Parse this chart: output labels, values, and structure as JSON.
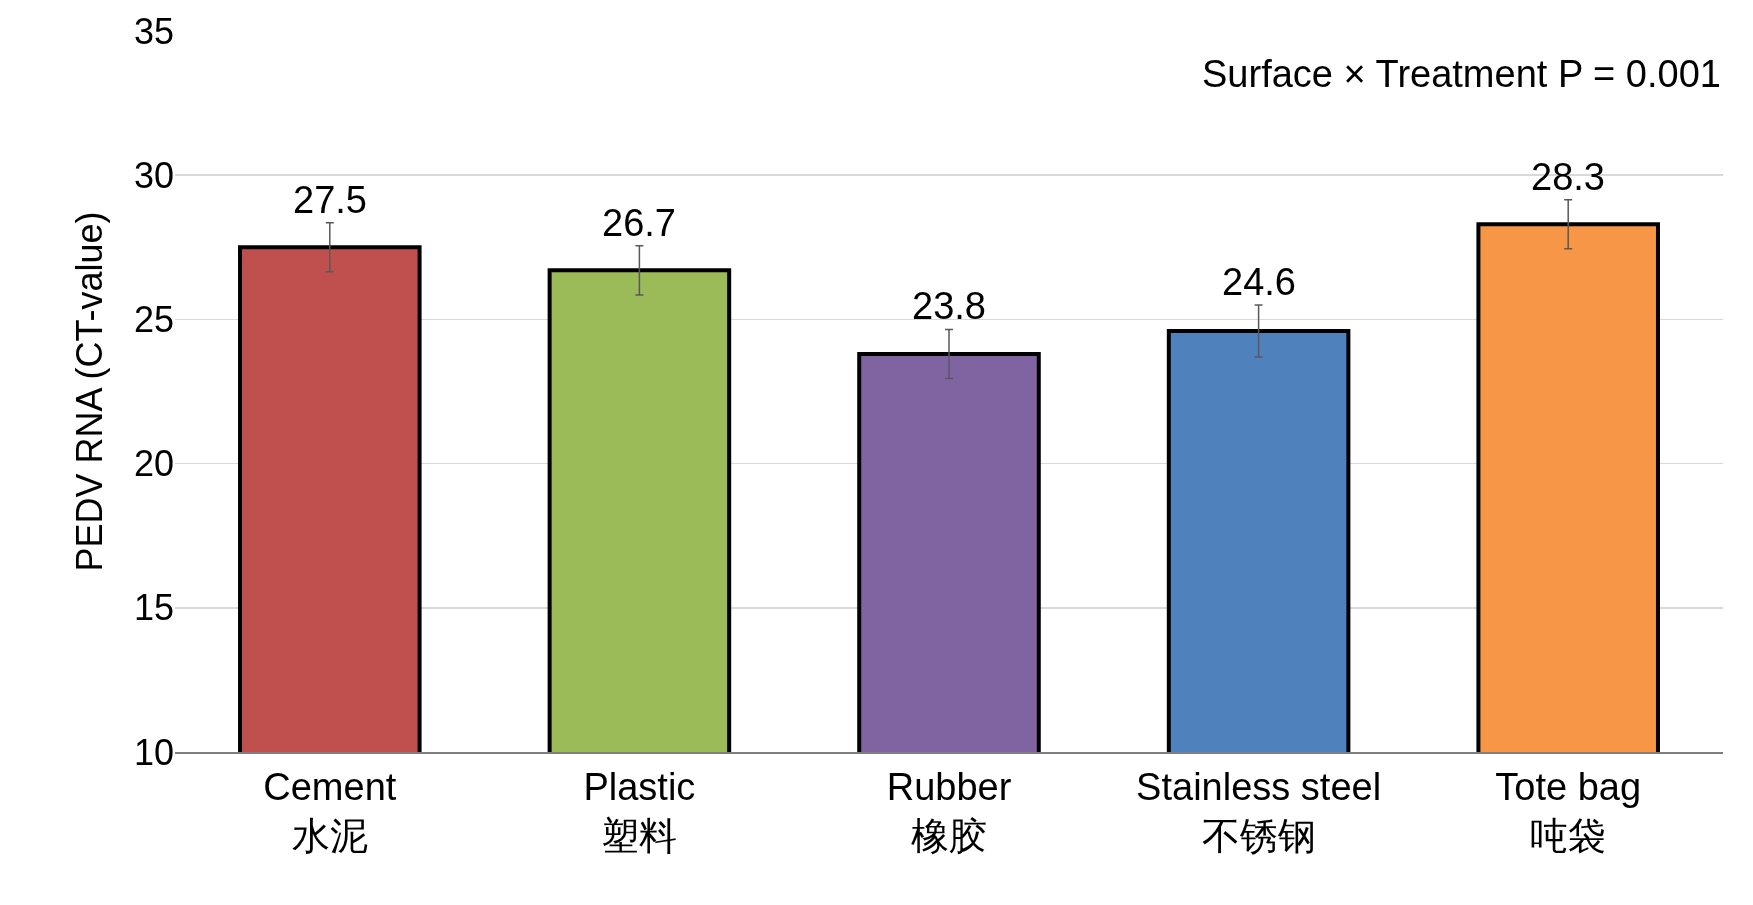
{
  "chart_data": {
    "type": "bar",
    "ylabel": "PEDV RNA (CT-value)",
    "categories": [
      "Cement\n水泥",
      "Plastic\n塑料",
      "Rubber\n橡胶",
      "Stainless steel\n不锈钢",
      "Tote bag\n吨袋"
    ],
    "values": [
      27.5,
      26.7,
      23.8,
      24.6,
      28.3
    ],
    "colors": [
      "#c0504d",
      "#9bbb59",
      "#8064a2",
      "#4f81bd",
      "#f79646"
    ],
    "errors": [
      0.85,
      0.85,
      0.85,
      0.9,
      0.85
    ],
    "data_labels": true,
    "ylim": [
      10,
      35
    ],
    "yticks": [
      10,
      15,
      20,
      25,
      30,
      35
    ],
    "grid": "y",
    "annotations": [
      "Surface × Treatment P = 0.001"
    ]
  }
}
